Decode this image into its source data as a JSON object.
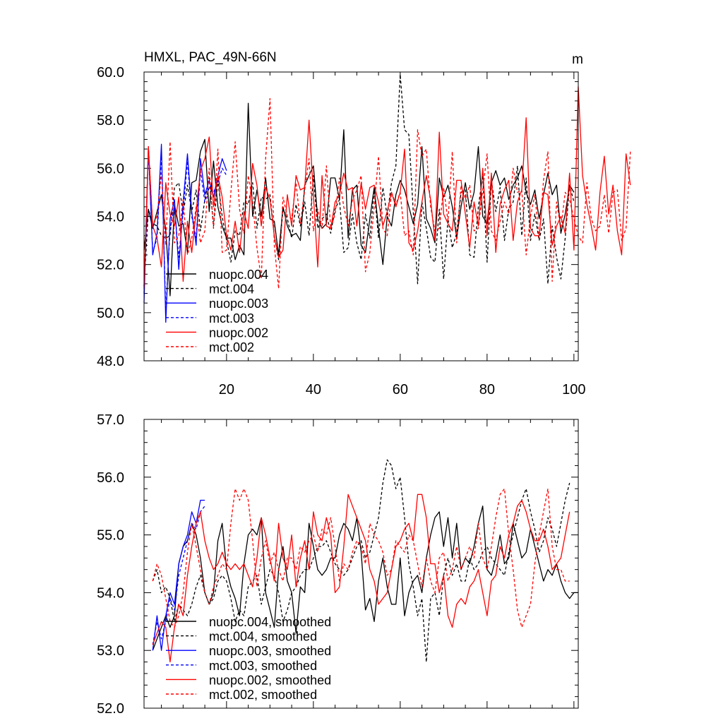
{
  "colors": {
    "nuopc004": "#000000",
    "mct004": "#000000",
    "nuopc003": "#0000ff",
    "mct003": "#0000ff",
    "nuopc002": "#ff0000",
    "mct002": "#ff0000"
  },
  "chart_data": [
    {
      "type": "line",
      "title": "HMXL, PAC_49N-66N",
      "units": "m",
      "xlim": [
        1,
        101
      ],
      "ylim": [
        48,
        60
      ],
      "x_ticks": [
        "20",
        "40",
        "60",
        "80",
        "100"
      ],
      "y_ticks": [
        "48.0",
        "50.0",
        "52.0",
        "54.0",
        "56.0",
        "58.0",
        "60.0"
      ],
      "legend_position": "bottom-left",
      "series": [
        {
          "name": "nuopc.004",
          "color": "#000000",
          "dash": "solid",
          "x_start": 1,
          "values": [
            52.6,
            54.3,
            53.5,
            54.2,
            54.9,
            53.4,
            50.7,
            54.5,
            53.6,
            53.7,
            52.5,
            55.4,
            55.5,
            56.7,
            57.2,
            54.2,
            56.3,
            54.4,
            53.6,
            53.1,
            53.1,
            52.2,
            52.8,
            52.4,
            58.7,
            54.0,
            55.1,
            54.0,
            55.6,
            53.9,
            53.8,
            52.4,
            54.4,
            53.6,
            53.2,
            53.3,
            53.0,
            55.3,
            55.7,
            56.1,
            53.9,
            53.5,
            53.7,
            55.6,
            55.6,
            54.7,
            57.6,
            53.1,
            55.1,
            55.3,
            52.8,
            52.5,
            53.9,
            55.2,
            53.5,
            52.0,
            54.0,
            53.6,
            54.9,
            55.5,
            55.1,
            54.4,
            53.7,
            54.5,
            56.9,
            53.9,
            53.5,
            52.9,
            55.6,
            54.8,
            55.3,
            54.4,
            53.1,
            54.4,
            55.4,
            54.3,
            55.0,
            56.9,
            54.0,
            53.7,
            55.4,
            55.9,
            55.3,
            55.6,
            54.7,
            55.3,
            55.6,
            56.1,
            55.0,
            54.5,
            55.1,
            53.9,
            54.9,
            55.8,
            54.9,
            55.3,
            53.3,
            54.1,
            55.3,
            55.0
          ]
        },
        {
          "name": "mct.004",
          "color": "#000000",
          "dash": "dashed",
          "x_start": 1,
          "values": [
            51.1,
            54.3,
            53.7,
            53.6,
            53.2,
            53.1,
            53.2,
            55.2,
            55.4,
            54.1,
            55.3,
            54.2,
            55.1,
            53.4,
            54.7,
            55.6,
            53.6,
            55.5,
            54.0,
            53.0,
            52.1,
            53.4,
            53.2,
            54.6,
            54.5,
            55.4,
            53.5,
            54.8,
            54.7,
            54.9,
            53.2,
            52.2,
            54.3,
            53.9,
            53.1,
            54.5,
            53.6,
            54.6,
            53.2,
            55.7,
            53.5,
            53.9,
            54.1,
            53.3,
            54.3,
            54.7,
            52.5,
            52.7,
            54.1,
            52.9,
            52.2,
            54.1,
            53.1,
            55.1,
            53.1,
            55.2,
            54.0,
            55.4,
            56.1,
            59.9,
            57.6,
            57.4,
            54.2,
            51.2,
            54.6,
            53.5,
            52.3,
            52.1,
            54.3,
            51.4,
            53.9,
            52.7,
            53.3,
            55.0,
            55.1,
            52.4,
            52.3,
            54.4,
            55.7,
            52.1,
            55.5,
            54.2,
            55.2,
            53.0,
            54.3,
            54.6,
            56.1,
            53.2,
            55.6,
            53.0,
            54.1,
            53.0,
            53.9,
            51.2,
            53.6,
            52.3,
            51.4,
            53.1,
            55.3,
            54.6
          ]
        },
        {
          "name": "nuopc.003",
          "color": "#0000ff",
          "dash": "solid",
          "x_start": 1,
          "values": [
            50.4,
            56.9,
            52.4,
            53.3,
            57.0,
            49.6,
            53.9,
            54.7,
            51.8,
            54.6,
            56.6,
            54.2,
            52.8,
            56.4,
            54.9,
            55.5,
            54.8,
            55.7,
            56.4,
            55.9
          ]
        },
        {
          "name": "mct.003",
          "color": "#0000ff",
          "dash": "dashed",
          "x_start": 1,
          "values": [
            50.8,
            56.8,
            52.5,
            53.1,
            56.6,
            50.0,
            53.5,
            54.4,
            52.3,
            54.2,
            56.3,
            54.0,
            53.1,
            55.9,
            54.6,
            55.2,
            55.0,
            55.4,
            56.0,
            55.7
          ]
        },
        {
          "name": "nuopc.002",
          "color": "#ff0000",
          "dash": "solid",
          "x_start": 1,
          "values": [
            51.0,
            56.9,
            53.6,
            53.1,
            51.9,
            55.4,
            54.1,
            53.6,
            54.8,
            51.3,
            53.8,
            52.5,
            54.2,
            55.9,
            56.4,
            57.3,
            54.4,
            55.7,
            54.8,
            53.2,
            52.6,
            53.8,
            52.5,
            54.2,
            53.5,
            56.2,
            55.3,
            53.6,
            55.2,
            54.7,
            53.2,
            52.3,
            52.6,
            54.9,
            53.6,
            55.7,
            55.1,
            55.2,
            58.0,
            54.9,
            51.9,
            55.7,
            53.6,
            53.5,
            54.6,
            54.9,
            55.8,
            55.1,
            55.2,
            53.6,
            55.4,
            54.3,
            55.2,
            55.3,
            54.6,
            53.6,
            54.2,
            55.0,
            54.4,
            55.0,
            56.8,
            52.9,
            52.6,
            53.4,
            54.6,
            55.7,
            54.7,
            53.0,
            57.5,
            54.1,
            53.7,
            53.4,
            55.5,
            55.5,
            54.1,
            52.7,
            54.6,
            53.6,
            56.0,
            53.2,
            55.8,
            52.5,
            54.5,
            55.1,
            55.5,
            53.0,
            54.6,
            55.1,
            58.1,
            53.5,
            53.2,
            53.2,
            55.0,
            54.9,
            52.8,
            53.6,
            54.0,
            53.3,
            55.8,
            52.6,
            59.4,
            55.7,
            54.5,
            53.6,
            52.6,
            55.0,
            56.5,
            54.1,
            55.3,
            53.4,
            52.4,
            56.6,
            55.3
          ]
        },
        {
          "name": "mct.002",
          "color": "#ff0000",
          "dash": "dashed",
          "x_start": 1,
          "values": [
            51.1,
            56.9,
            53.6,
            54.0,
            55.8,
            52.8,
            57.1,
            52.9,
            53.2,
            54.7,
            52.4,
            53.1,
            54.4,
            52.9,
            53.4,
            56.0,
            53.5,
            56.8,
            52.5,
            52.6,
            55.0,
            57.1,
            54.3,
            53.3,
            55.7,
            54.6,
            52.7,
            51.4,
            56.4,
            58.9,
            52.8,
            51.0,
            54.8,
            54.0,
            53.9,
            55.4,
            53.7,
            55.1,
            56.4,
            53.4,
            54.3,
            53.5,
            56.1,
            53.5,
            54.1,
            55.6,
            54.4,
            53.6,
            54.7,
            55.1,
            55.7,
            51.7,
            52.5,
            54.4,
            56.5,
            53.5,
            53.2,
            55.0,
            54.5,
            55.0,
            53.2,
            53.4,
            52.4,
            57.6,
            56.5,
            56.8,
            54.4,
            53.4,
            53.5,
            55.2,
            53.8,
            56.7,
            52.9,
            55.3,
            54.7,
            55.3,
            53.4,
            53.5,
            55.1,
            56.6,
            53.4,
            53.0,
            53.8,
            54.6,
            54.1,
            56.0,
            55.0,
            55.1,
            52.4,
            54.0,
            54.9,
            53.1,
            55.5,
            56.7,
            51.3,
            54.6,
            53.5,
            55.0,
            54.7,
            53.9,
            53.2,
            52.9,
            55.4,
            53.9,
            53.4,
            53.6,
            54.9,
            53.3,
            55.0,
            55.1,
            53.0,
            53.5,
            56.7
          ]
        }
      ]
    },
    {
      "type": "line",
      "xlim": [
        1,
        101
      ],
      "ylim": [
        52,
        57
      ],
      "y_ticks": [
        "52.0",
        "53.0",
        "54.0",
        "55.0",
        "56.0",
        "57.0"
      ],
      "legend_position": "bottom-left",
      "series": [
        {
          "name": "nuopc.004, smoothed",
          "color": "#000000",
          "dash": "solid",
          "x_start": 3,
          "values": [
            53.0,
            53.2,
            53.4,
            53.6,
            53.4,
            53.6,
            54.5,
            54.8,
            54.9,
            55.2,
            55.0,
            54.6,
            54.0,
            53.8,
            54.0,
            54.9,
            55.2,
            54.4,
            54.1,
            53.9,
            53.6,
            54.5,
            55.0,
            55.1,
            55.0,
            55.3,
            54.0,
            53.7,
            53.4,
            54.4,
            54.8,
            54.2,
            54.0,
            53.3,
            54.1,
            54.0,
            55.2,
            54.8,
            54.4,
            54.3,
            54.4,
            54.6,
            54.6,
            55.0,
            55.2,
            55.1,
            54.9,
            55.3,
            54.7,
            53.7,
            53.9,
            53.5,
            54.2,
            54.6,
            54.1,
            53.8,
            53.8,
            54.6,
            53.6,
            54.0,
            54.2,
            54.3,
            54.0,
            54.6,
            55.0,
            55.3,
            55.4,
            54.8,
            55.3,
            54.6,
            55.2,
            54.4,
            54.6,
            54.5,
            54.8,
            55.2,
            55.5,
            54.4,
            54.3,
            54.6,
            55.0,
            54.5,
            54.6,
            55.2,
            54.9,
            54.6,
            54.7,
            55.1,
            54.8,
            54.5,
            54.2,
            54.4,
            54.3,
            54.5,
            54.2,
            54.0,
            53.9,
            54.0,
            54.0
          ]
        },
        {
          "name": "mct.004, smoothed",
          "color": "#000000",
          "dash": "dashed",
          "x_start": 3,
          "values": [
            54.2,
            54.4,
            54.0,
            54.1,
            53.9,
            53.5,
            53.8,
            53.7,
            53.6,
            53.8,
            54.1,
            54.3,
            54.0,
            53.8,
            53.9,
            54.2,
            54.3,
            54.2,
            53.9,
            53.5,
            53.7,
            53.6,
            54.1,
            54.2,
            54.3,
            53.8,
            54.1,
            54.4,
            54.3,
            54.0,
            53.5,
            53.7,
            54.0,
            54.1,
            54.3,
            54.4,
            54.4,
            54.6,
            54.8,
            54.8,
            54.9,
            54.7,
            54.5,
            54.4,
            54.3,
            54.4,
            54.6,
            54.8,
            54.9,
            54.6,
            54.7,
            55.0,
            55.3,
            55.9,
            56.3,
            56.2,
            55.8,
            56.0,
            55.3,
            54.5,
            54.1,
            53.6,
            53.9,
            52.8,
            53.9,
            54.0,
            53.6,
            54.3,
            54.6,
            54.3,
            54.5,
            54.2,
            54.2,
            54.6,
            54.4,
            54.5,
            54.7,
            54.8,
            54.6,
            54.5,
            54.4,
            54.3,
            54.7,
            55.0,
            55.3,
            55.6,
            55.8,
            55.4,
            55.1,
            54.7,
            54.9,
            55.3,
            55.1,
            54.8,
            55.2,
            55.6,
            55.9
          ]
        },
        {
          "name": "nuopc.003, smoothed",
          "color": "#0000ff",
          "dash": "solid",
          "x_start": 3,
          "values": [
            53.0,
            53.6,
            53.0,
            53.6,
            54.0,
            53.8,
            54.5,
            54.8,
            55.0,
            55.4,
            55.2,
            55.6,
            55.6
          ]
        },
        {
          "name": "mct.003, smoothed",
          "color": "#0000ff",
          "dash": "dashed",
          "x_start": 3,
          "values": [
            53.1,
            53.5,
            53.2,
            53.5,
            53.9,
            53.7,
            54.3,
            54.6,
            54.9,
            55.2,
            55.1,
            55.4,
            55.5
          ]
        },
        {
          "name": "nuopc.002, smoothed",
          "color": "#ff0000",
          "dash": "solid",
          "x_start": 3,
          "values": [
            53.1,
            53.3,
            53.5,
            53.4,
            52.8,
            53.4,
            53.8,
            53.6,
            54.3,
            54.8,
            55.2,
            55.4,
            54.9,
            54.6,
            54.4,
            54.5,
            54.7,
            54.5,
            54.4,
            54.5,
            54.4,
            54.5,
            54.3,
            54.1,
            54.6,
            55.3,
            55.0,
            54.6,
            54.2,
            55.2,
            54.6,
            54.4,
            55.0,
            54.1,
            54.6,
            54.9,
            54.4,
            55.4,
            55.0,
            54.9,
            55.3,
            55.0,
            54.0,
            54.1,
            54.8,
            55.7,
            55.5,
            55.3,
            55.1,
            54.9,
            54.4,
            54.2,
            53.8,
            53.9,
            54.0,
            54.4,
            54.8,
            54.9,
            55.1,
            55.2,
            54.9,
            55.7,
            55.7,
            55.3,
            54.5,
            54.5,
            54.0,
            54.3,
            53.6,
            53.4,
            53.8,
            53.9,
            53.8,
            54.1,
            54.2,
            54.4,
            54.0,
            53.6,
            54.2,
            54.3,
            54.8,
            54.6,
            55.0,
            55.2,
            55.5,
            55.6,
            55.4,
            55.1,
            54.9,
            54.9,
            55.1,
            54.8,
            54.4,
            54.5,
            54.6,
            55.0,
            55.4
          ]
        },
        {
          "name": "mct.002, smoothed",
          "color": "#ff0000",
          "dash": "dashed",
          "x_start": 3,
          "values": [
            54.2,
            54.5,
            54.3,
            53.9,
            53.5,
            53.4,
            53.6,
            54.0,
            54.7,
            55.2,
            54.8,
            54.4,
            54.0,
            53.8,
            54.1,
            54.3,
            54.5,
            54.4,
            55.2,
            55.8,
            55.6,
            55.8,
            55.6,
            54.9,
            54.1,
            54.6,
            54.9,
            54.5,
            54.7,
            54.4,
            54.2,
            54.6,
            54.6,
            54.4,
            54.8,
            54.7,
            54.9,
            55.0,
            54.7,
            55.1,
            55.0,
            55.3,
            54.8,
            54.2,
            54.5,
            54.4,
            54.7,
            54.9,
            54.8,
            54.5,
            55.2,
            55.0,
            54.9,
            54.7,
            54.3,
            54.4,
            54.9,
            54.8,
            54.7,
            55.0,
            54.9,
            54.5,
            54.1,
            54.6,
            54.2,
            54.0,
            54.6,
            54.7,
            54.2,
            54.4,
            54.8,
            54.4,
            54.6,
            54.8,
            54.6,
            55.2,
            54.6,
            54.4,
            54.8,
            55.3,
            55.7,
            55.8,
            55.0,
            54.4,
            53.7,
            53.4,
            53.6,
            53.8,
            54.5,
            55.0,
            55.4,
            55.8,
            54.8,
            54.4,
            54.4,
            54.2,
            54.2
          ]
        }
      ]
    }
  ]
}
